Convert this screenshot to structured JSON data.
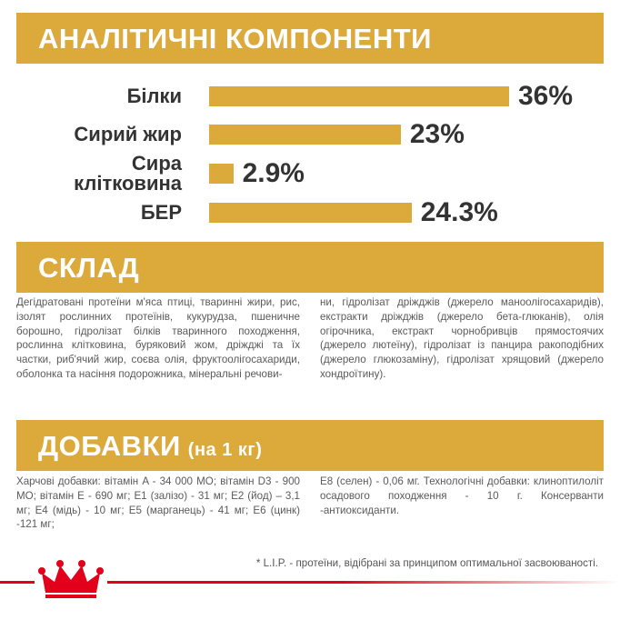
{
  "analytics": {
    "title": "АНАЛІТИЧНІ КОМПОНЕНТИ",
    "items": [
      {
        "label": "Білки",
        "value": 36,
        "value_label": "36%"
      },
      {
        "label": "Сирий жир",
        "value": 23,
        "value_label": "23%"
      },
      {
        "label": "Сира клітковина",
        "value": 2.9,
        "value_label": "2.9%"
      },
      {
        "label": "БЕР",
        "value": 24.3,
        "value_label": "24.3%"
      }
    ]
  },
  "composition": {
    "title": "СКЛАД",
    "columns": [
      "Дегідратовані протеїни м'яса птиці, тваринні жири, рис, ізолят рослинних протеїнів, кукурудза, пшеничне борошно, гідролізат білків тваринного походження, рослинна клітковина, буряковий жом, дріжджі та їх частки, риб'ячий жир, соєва олія, фруктоолігосахариди, оболонка та насіння подорожника, мінеральні речови-",
      "ни, гідролізат дріжджів (джерело маноолігосахаридів), екстракти дріжджів (джерело бета-глюканів), олія огірочника, екстракт чорнобривців прямостоячих (джерело лютеїну), гідролізат із панцира ракоподібних (джерело глюкозаміну), гідролізат хрящовий (джерело хондроїтину)."
    ]
  },
  "additives": {
    "title": "ДОБАВКИ",
    "subtitle": "(на 1 кг)",
    "columns": [
      "Харчові добавки: вітамін A - 34 000 МО; вітамін D3 - 900 МО; вітамін E - 690 мг; E1 (залізо) - 31 мг; E2 (йод) – 3,1 мг; E4 (мідь) - 10 мг; E5 (марганець) - 41 мг; E6 (цинк) -121 мг;",
      "E8 (селен) - 0,06 мг. Технологічні добавки: клиноптилоліт осадового походження - 10 г. Консерванти -антиоксиданти."
    ]
  },
  "footnote": "* L.I.P. - протеїни, відібрані за принципом оптимальної засвоюваності."
}
